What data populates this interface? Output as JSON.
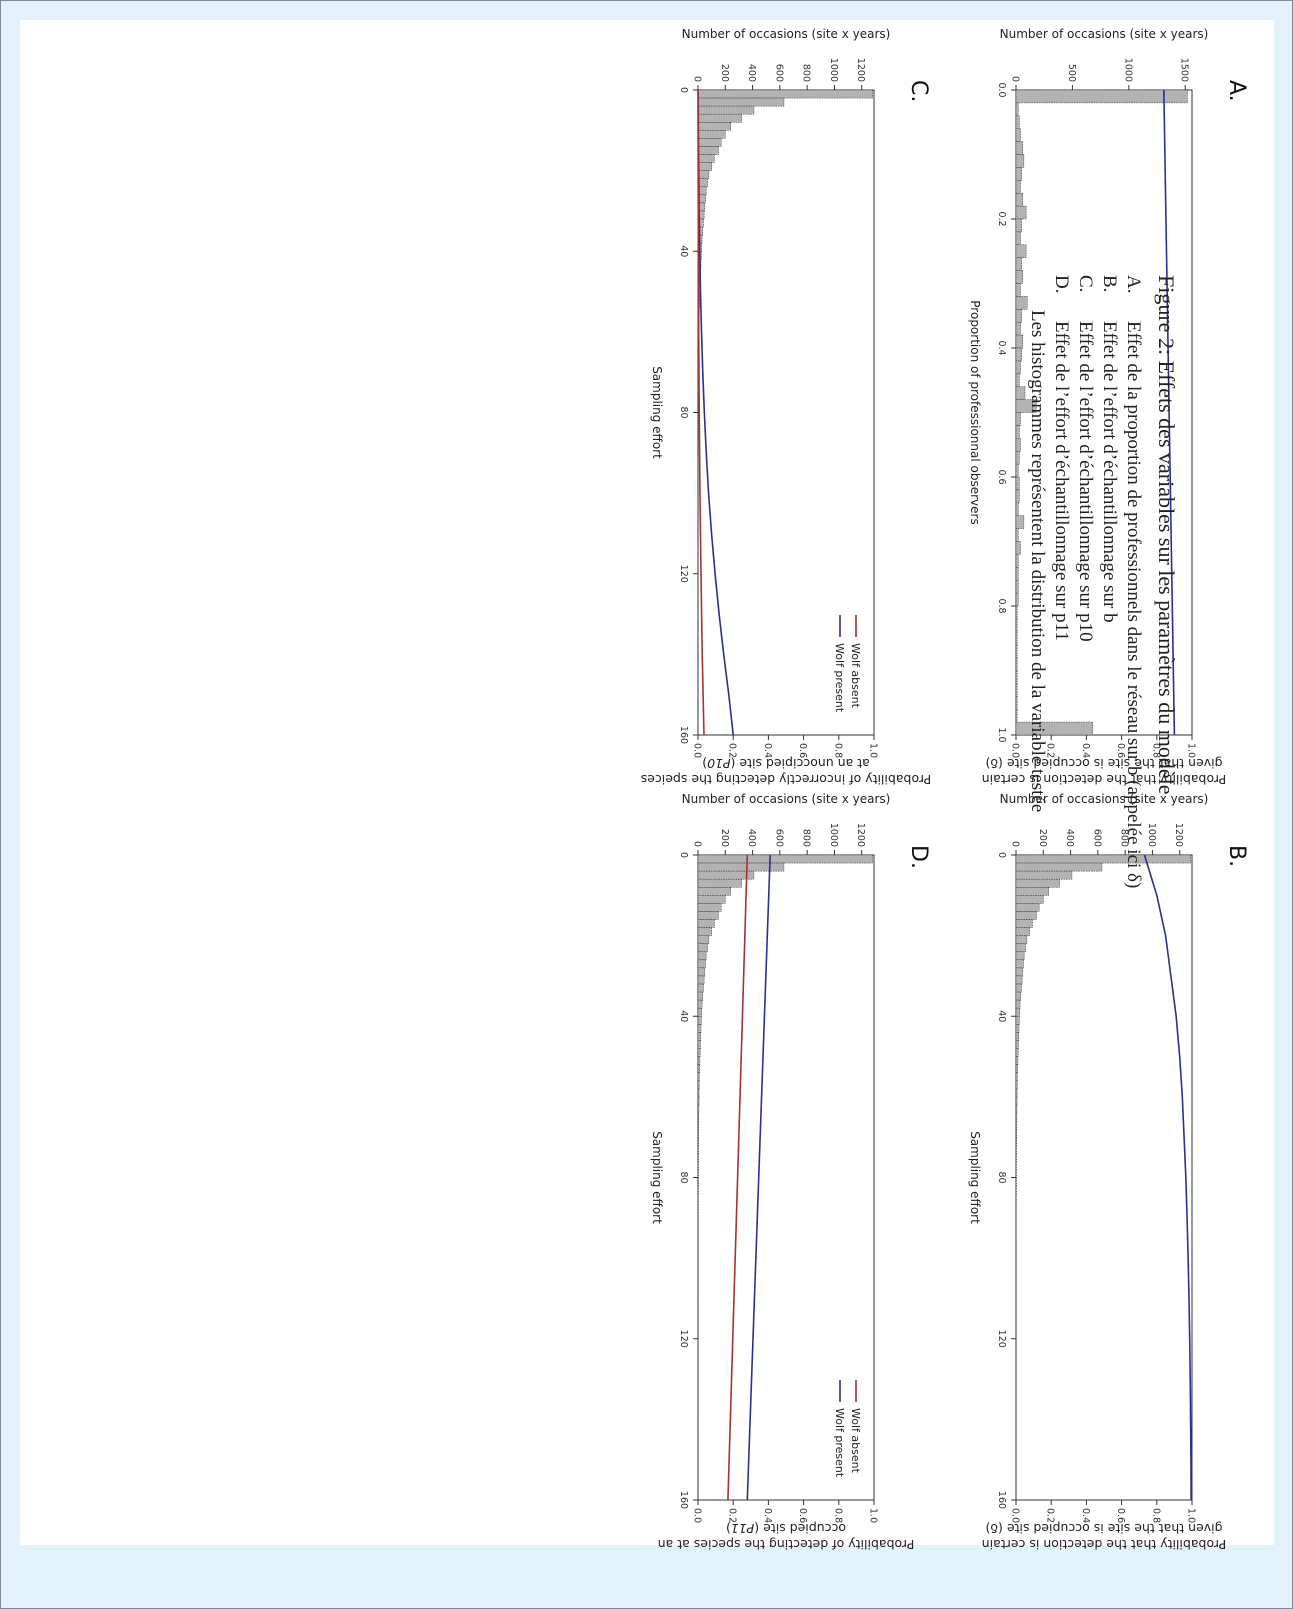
{
  "caption": {
    "title": "Figure 2: Effets des variables sur les paramètres du modèle",
    "items": [
      {
        "label": "A.",
        "text": "Effet de la proportion de professionnels dans le réseau sur b (appelée ici δ)"
      },
      {
        "label": "B.",
        "text": "Effet de l’effort d’échantillonnage sur b"
      },
      {
        "label": "C.",
        "text": "Effet de l’effort d’échantillonnage sur p10"
      },
      {
        "label": "D.",
        "text": "Effet de l’effort d’échantillonnage sur p11"
      }
    ],
    "note": "Les histogrammes représentent la distribution de la variable testée"
  },
  "colors": {
    "bars": "#b3b3b3",
    "wolf_present": "#2b2f94",
    "wolf_absent": "#a8322c"
  },
  "chart_data": [
    {
      "panel": "A.",
      "type": "bar",
      "title_lines": [
        "Probability that the detection is certain",
        "given that the site is occupied site (δ)"
      ],
      "title_italic": "",
      "xlabel": "Proportion of professionnal observers",
      "ylabel": "Number of occasions (site x years)",
      "xlim": [
        0,
        1
      ],
      "xticks": [
        "0.0",
        "0.2",
        "0.4",
        "0.6",
        "0.8",
        "1.0"
      ],
      "ylim": [
        0,
        1560
      ],
      "yticks": [
        0,
        500,
        1000,
        1500
      ],
      "rlim": [
        0,
        1
      ],
      "rticks": [
        "0.0",
        "0.2",
        "0.4",
        "0.6",
        "0.8",
        "1.0"
      ],
      "bins": {
        "start": 0,
        "width": 0.02,
        "values": [
          1520,
          20,
          30,
          40,
          60,
          70,
          50,
          40,
          60,
          90,
          50,
          40,
          90,
          50,
          60,
          40,
          100,
          50,
          40,
          60,
          50,
          40,
          30,
          80,
          180,
          40,
          30,
          40,
          30,
          20,
          30,
          30,
          20,
          70,
          20,
          40,
          20,
          20,
          20,
          20,
          10,
          10,
          10,
          10,
          10,
          10,
          10,
          10,
          10,
          680
        ]
      },
      "series": [
        {
          "name": "",
          "color_key": "wolf_present",
          "x": [
            0,
            1
          ],
          "y": [
            0.84,
            0.9
          ]
        }
      ],
      "legend": []
    },
    {
      "panel": "B.",
      "type": "bar",
      "title_lines": [
        "Probability that the detection is certain",
        "given that the site is occupied site (δ)"
      ],
      "title_italic": "",
      "xlabel": "Sampling effort",
      "ylabel": "Number of occasions (site x years)",
      "xlim": [
        0,
        160
      ],
      "xticks": [
        "0",
        "40",
        "80",
        "120",
        "160"
      ],
      "ylim": [
        0,
        1290
      ],
      "yticks": [
        0,
        200,
        400,
        600,
        800,
        1000,
        1200
      ],
      "rlim": [
        0,
        1
      ],
      "rticks": [
        "0.0",
        "0.2",
        "0.4",
        "0.6",
        "0.8",
        "1.0"
      ],
      "bins": {
        "start": 0,
        "width": 2,
        "values": [
          1280,
          630,
          410,
          320,
          240,
          200,
          170,
          150,
          120,
          100,
          80,
          70,
          60,
          55,
          50,
          45,
          40,
          35,
          30,
          27,
          25,
          22,
          20,
          18,
          16,
          14,
          12,
          10,
          9,
          8,
          8,
          7,
          6,
          6,
          5,
          5,
          4,
          4,
          3,
          3,
          3,
          3,
          2,
          2,
          2,
          2,
          2,
          2,
          1,
          1,
          1,
          1,
          1,
          1,
          1,
          1,
          1,
          1,
          1,
          1,
          1,
          1,
          1,
          1,
          1,
          1,
          1,
          1,
          1,
          1,
          1,
          1,
          1,
          1,
          1,
          1,
          1,
          1,
          1,
          1
        ]
      },
      "series": [
        {
          "name": "",
          "color_key": "wolf_present",
          "x": [
            0,
            10,
            20,
            30,
            40,
            50,
            60,
            70,
            80,
            90,
            100,
            110,
            120,
            130,
            140,
            150,
            160
          ],
          "y": [
            0.73,
            0.8,
            0.85,
            0.88,
            0.91,
            0.93,
            0.945,
            0.955,
            0.965,
            0.972,
            0.978,
            0.983,
            0.987,
            0.99,
            0.992,
            0.994,
            0.995
          ]
        }
      ],
      "legend": []
    },
    {
      "panel": "C.",
      "type": "bar",
      "title_lines": [
        "Probability of incorrectly detecting the speices",
        "at an unoccipied site ("
      ],
      "title_italic": "P10",
      "xlabel": "Sampling effort",
      "ylabel": "Number of occasions (site x years)",
      "xlim": [
        0,
        160
      ],
      "xticks": [
        "0",
        "40",
        "80",
        "120",
        "160"
      ],
      "ylim": [
        0,
        1290
      ],
      "yticks": [
        0,
        200,
        400,
        600,
        800,
        1000,
        1200
      ],
      "rlim": [
        0,
        1
      ],
      "rticks": [
        "0.0",
        "0.2",
        "0.4",
        "0.6",
        "0.8",
        "1.0"
      ],
      "bins": {
        "start": 0,
        "width": 2,
        "values": [
          1280,
          630,
          410,
          320,
          240,
          200,
          170,
          150,
          120,
          100,
          80,
          70,
          60,
          55,
          50,
          45,
          40,
          35,
          30,
          27,
          25,
          22,
          20,
          18,
          16,
          14,
          12,
          10,
          9,
          8,
          8,
          7,
          6,
          6,
          5,
          5,
          4,
          4,
          3,
          3,
          3,
          3,
          2,
          2,
          2,
          2,
          2,
          2,
          1,
          1,
          1,
          1,
          1,
          1,
          1,
          1,
          1,
          1,
          1,
          1,
          1,
          1,
          1,
          1,
          1,
          1,
          1,
          1,
          1,
          1,
          1,
          1,
          1,
          1,
          1,
          1,
          1,
          1,
          1,
          1
        ]
      },
      "series": [
        {
          "name": "Wolf present",
          "color_key": "wolf_present",
          "x": [
            0,
            10,
            20,
            30,
            40,
            50,
            60,
            70,
            80,
            90,
            100,
            110,
            120,
            130,
            140,
            150,
            160
          ],
          "y": [
            0.001,
            0.002,
            0.004,
            0.006,
            0.01,
            0.014,
            0.02,
            0.027,
            0.036,
            0.047,
            0.06,
            0.077,
            0.097,
            0.12,
            0.146,
            0.175,
            0.2
          ]
        },
        {
          "name": "Wolf absent",
          "color_key": "wolf_absent",
          "x": [
            0,
            20,
            40,
            60,
            80,
            100,
            120,
            140,
            160
          ],
          "y": [
            0.0,
            0.001,
            0.002,
            0.004,
            0.007,
            0.011,
            0.017,
            0.024,
            0.034
          ]
        }
      ],
      "legend": [
        "Wolf absent",
        "Wolf present"
      ]
    },
    {
      "panel": "D.",
      "type": "bar",
      "title_lines": [
        "Probability of detecting the species at an",
        "occupied site ("
      ],
      "title_italic": "P11",
      "xlabel": "Sampling effort",
      "ylabel": "Number of occasions (site x years)",
      "xlim": [
        0,
        160
      ],
      "xticks": [
        "0",
        "40",
        "80",
        "120",
        "160"
      ],
      "ylim": [
        0,
        1290
      ],
      "yticks": [
        0,
        200,
        400,
        600,
        800,
        1000,
        1200
      ],
      "rlim": [
        0,
        1
      ],
      "rticks": [
        "0.0",
        "0.2",
        "0.4",
        "0.6",
        "0.8",
        "1.0"
      ],
      "bins": {
        "start": 0,
        "width": 2,
        "values": [
          1280,
          630,
          410,
          320,
          240,
          200,
          170,
          150,
          120,
          100,
          80,
          70,
          60,
          55,
          50,
          45,
          40,
          35,
          30,
          27,
          25,
          22,
          20,
          18,
          16,
          14,
          12,
          10,
          9,
          8,
          8,
          7,
          6,
          6,
          5,
          5,
          4,
          4,
          3,
          3,
          3,
          3,
          2,
          2,
          2,
          2,
          2,
          2,
          1,
          1,
          1,
          1,
          1,
          1,
          1,
          1,
          1,
          1,
          1,
          1,
          1,
          1,
          1,
          1,
          1,
          1,
          1,
          1,
          1,
          1,
          1,
          1,
          1,
          1,
          1,
          1,
          1,
          1,
          1,
          1
        ]
      },
      "series": [
        {
          "name": "Wolf present",
          "color_key": "wolf_present",
          "x": [
            0,
            160
          ],
          "y": [
            0.41,
            0.28
          ]
        },
        {
          "name": "Wolf absent",
          "color_key": "wolf_absent",
          "x": [
            0,
            160
          ],
          "y": [
            0.28,
            0.17
          ]
        }
      ],
      "legend": [
        "Wolf absent",
        "Wolf present"
      ]
    }
  ]
}
